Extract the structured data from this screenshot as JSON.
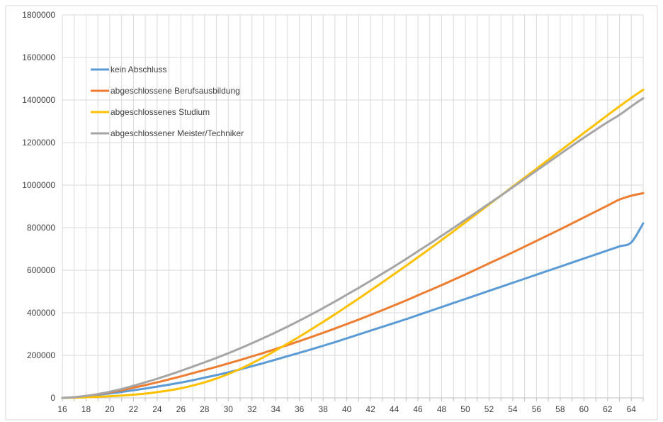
{
  "chart_data": {
    "type": "line",
    "title": "",
    "xlabel": "",
    "ylabel": "",
    "x": [
      16,
      17,
      18,
      19,
      20,
      21,
      22,
      23,
      24,
      25,
      26,
      27,
      28,
      29,
      30,
      31,
      32,
      33,
      34,
      35,
      36,
      37,
      38,
      39,
      40,
      41,
      42,
      43,
      44,
      45,
      46,
      47,
      48,
      49,
      50,
      51,
      52,
      53,
      54,
      55,
      56,
      57,
      58,
      59,
      60,
      61,
      62,
      63,
      64,
      65
    ],
    "xlim": [
      16,
      65
    ],
    "ylim": [
      0,
      1800000
    ],
    "x_ticks": [
      16,
      18,
      20,
      22,
      24,
      26,
      28,
      30,
      32,
      34,
      36,
      38,
      40,
      42,
      44,
      46,
      48,
      50,
      52,
      54,
      56,
      58,
      60,
      62,
      64
    ],
    "y_ticks": [
      0,
      200000,
      400000,
      600000,
      800000,
      1000000,
      1200000,
      1400000,
      1600000,
      1800000
    ],
    "grid": true,
    "legend_position": "top-left",
    "series": [
      {
        "name": "kein Abschluss",
        "color": "#5b9bd5",
        "values": [
          0,
          3000,
          8000,
          14000,
          21000,
          28000,
          36000,
          44000,
          53000,
          62000,
          72000,
          83000,
          95000,
          107000,
          120000,
          134000,
          149000,
          164000,
          180000,
          196000,
          212000,
          228000,
          245000,
          262000,
          280000,
          298000,
          316000,
          334000,
          352000,
          370000,
          389000,
          408000,
          427000,
          446000,
          465000,
          484000,
          503000,
          522000,
          541000,
          560000,
          579000,
          598000,
          617000,
          636000,
          655000,
          674000,
          693000,
          712000,
          731000,
          820000
        ]
      },
      {
        "name": "abgeschlossene Berufsausbildung",
        "color": "#ed7d31",
        "values": [
          0,
          3000,
          9000,
          17000,
          26000,
          36000,
          48000,
          60000,
          73000,
          87000,
          101000,
          116000,
          131000,
          146000,
          162000,
          178000,
          195000,
          212000,
          230000,
          248000,
          267000,
          286000,
          306000,
          326000,
          347000,
          368000,
          390000,
          412000,
          435000,
          458000,
          482000,
          506000,
          530000,
          555000,
          580000,
          606000,
          632000,
          658000,
          684000,
          711000,
          738000,
          765000,
          792000,
          820000,
          848000,
          876000,
          904000,
          932000,
          950000,
          962000
        ]
      },
      {
        "name": "abgeschlossenes Studium",
        "color": "#ffc000",
        "values": [
          0,
          1000,
          3000,
          5000,
          8000,
          11000,
          15000,
          20000,
          27000,
          35000,
          45000,
          58000,
          73000,
          91000,
          112000,
          136000,
          163000,
          192000,
          223000,
          255000,
          288000,
          322000,
          357000,
          393000,
          430000,
          467000,
          505000,
          543000,
          582000,
          621000,
          661000,
          701000,
          742000,
          783000,
          825000,
          867000,
          909000,
          951000,
          993000,
          1035000,
          1077000,
          1119000,
          1161000,
          1203000,
          1245000,
          1287000,
          1329000,
          1370000,
          1410000,
          1448000
        ]
      },
      {
        "name": "abgeschlossener Meister/Techniker",
        "color": "#a5a5a5",
        "values": [
          0,
          3000,
          9000,
          18000,
          29000,
          42000,
          57000,
          73000,
          90000,
          108000,
          127000,
          147000,
          167000,
          188000,
          210000,
          233000,
          257000,
          282000,
          308000,
          335000,
          363000,
          392000,
          422000,
          453000,
          485000,
          517000,
          550000,
          584000,
          618000,
          653000,
          689000,
          725000,
          762000,
          799000,
          837000,
          875000,
          913000,
          951000,
          990000,
          1029000,
          1068000,
          1107000,
          1146000,
          1185000,
          1223000,
          1260000,
          1296000,
          1330000,
          1370000,
          1408000
        ]
      }
    ]
  }
}
